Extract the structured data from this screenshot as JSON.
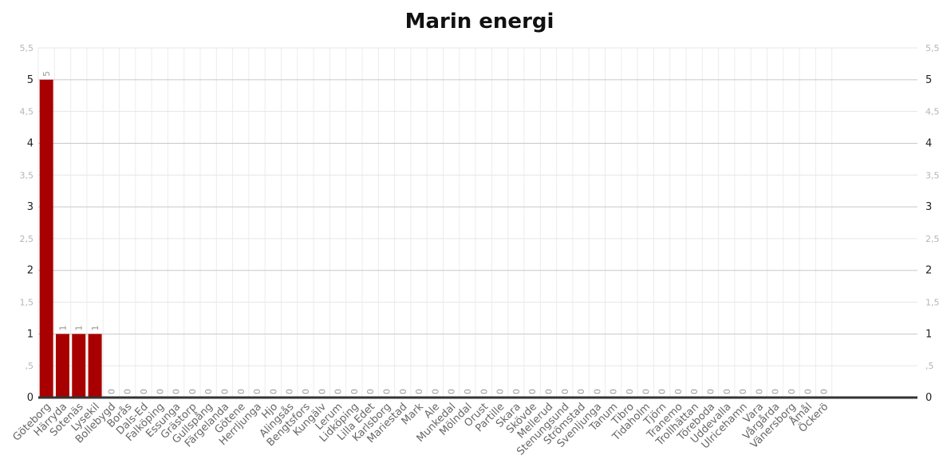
{
  "chart_data": {
    "type": "bar",
    "title": "Marin energi",
    "xlabel": "",
    "ylabel": "",
    "ylim": [
      0,
      5.5
    ],
    "y_ticks": [
      {
        "value": 0,
        "label": "0",
        "major": true
      },
      {
        "value": 0.5,
        "label": ",5",
        "major": false
      },
      {
        "value": 1,
        "label": "1",
        "major": true
      },
      {
        "value": 1.5,
        "label": "1,5",
        "major": false
      },
      {
        "value": 2,
        "label": "2",
        "major": true
      },
      {
        "value": 2.5,
        "label": "2,5",
        "major": false
      },
      {
        "value": 3,
        "label": "3",
        "major": true
      },
      {
        "value": 3.5,
        "label": "3,5",
        "major": false
      },
      {
        "value": 4,
        "label": "4",
        "major": true
      },
      {
        "value": 4.5,
        "label": "4,5",
        "major": false
      },
      {
        "value": 5,
        "label": "5",
        "major": true
      },
      {
        "value": 5.5,
        "label": "5,5",
        "major": false
      }
    ],
    "grid": true,
    "bar_color": "#a80000",
    "categories": [
      "Göteborg",
      "Härryda",
      "Sotenäs",
      "Lysekil",
      "Bollebygd",
      "Borås",
      "Dals-Ed",
      "Falköping",
      "Essunga",
      "Grästorp",
      "Gullspång",
      "Färgelanda",
      "Götene",
      "Herrljunga",
      "Hjo",
      "Alingsås",
      "Bengtsfors",
      "Kungälv",
      "Lerum",
      "Lidköping",
      "Lilla Edet",
      "Karlsborg",
      "Mariestad",
      "Mark",
      "Ale",
      "Munkedal",
      "Mölndal",
      "Orust",
      "Partille",
      "Skara",
      "Skövde",
      "Mellerud",
      "Stenungsund",
      "Strömstad",
      "Svenljunga",
      "Tanum",
      "Tibro",
      "Tidaholm",
      "Tjörn",
      "Tranemo",
      "Trollhättan",
      "Töreboda",
      "Uddevalla",
      "Ulricehamn",
      "Vara",
      "Vårgårda",
      "Vänersborg",
      "Åmål",
      "Öckerö"
    ],
    "values": [
      5,
      1,
      1,
      1,
      0,
      0,
      0,
      0,
      0,
      0,
      0,
      0,
      0,
      0,
      0,
      0,
      0,
      0,
      0,
      0,
      0,
      0,
      0,
      0,
      0,
      0,
      0,
      0,
      0,
      0,
      0,
      0,
      0,
      0,
      0,
      0,
      0,
      0,
      0,
      0,
      0,
      0,
      0,
      0,
      0,
      0,
      0,
      0,
      0
    ]
  }
}
